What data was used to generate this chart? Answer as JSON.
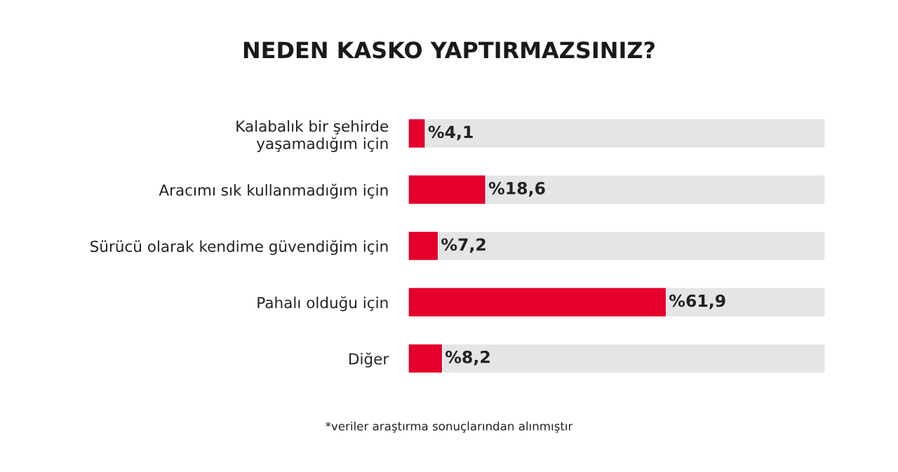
{
  "chart_data": {
    "type": "bar",
    "orientation": "horizontal",
    "stacked": true,
    "title": "NEDEN KASKO YAPTIRMAZSINIZ?",
    "categories": [
      "Kalabalık bir şehirde\nyaşamadığım için",
      "Aracımı sık kullanmadığım için",
      "Sürücü olarak kendime güvendiğim için",
      "Pahalı olduğu için",
      "Diğer"
    ],
    "series": [
      {
        "color": "#e4002b",
        "values": [
          4.1,
          18.6,
          7.2,
          61.9,
          8.2
        ],
        "value_labels": [
          "%4,1",
          "%18,6",
          "%7,2",
          "%61,9",
          "%8,2"
        ]
      },
      {
        "color": "#e5e5e5",
        "values": [
          95.9,
          81.4,
          92.8,
          38.1,
          91.8
        ]
      }
    ],
    "xlim": [
      0,
      100
    ],
    "tick_labels": "y",
    "grid": false,
    "legend": false,
    "annotations": [
      "*veriler araştırma sonuçlarından alınmıştır"
    ]
  }
}
